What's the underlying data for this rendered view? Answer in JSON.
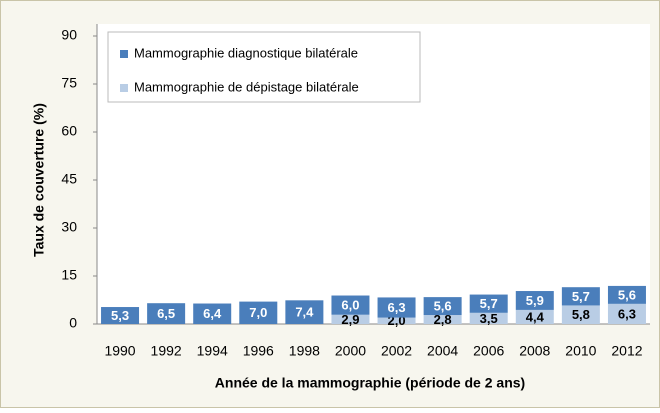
{
  "chart_data": {
    "type": "stacked-bar",
    "ylabel": "Taux de couverture (%)",
    "xlabel": "Année de la mammographie (période de 2 ans)",
    "categories": [
      "1990",
      "1992",
      "1994",
      "1996",
      "1998",
      "2000",
      "2002",
      "2004",
      "2006",
      "2008",
      "2010",
      "2012"
    ],
    "series": [
      {
        "name": "Mammographie de dépistage bilatérale",
        "color": "#b9cde5",
        "label_color": "#000000",
        "values": [
          null,
          null,
          null,
          null,
          null,
          2.9,
          2.0,
          2.8,
          3.5,
          4.4,
          5.8,
          6.3
        ],
        "value_labels": [
          null,
          null,
          null,
          null,
          null,
          "2,9",
          "2,0",
          "2,8",
          "3,5",
          "4,4",
          "5,8",
          "6,3"
        ]
      },
      {
        "name": "Mammographie diagnostique bilatérale",
        "color": "#4a7ebb",
        "label_color": "#ffffff",
        "values": [
          5.3,
          6.5,
          6.4,
          7.0,
          7.4,
          6.0,
          6.3,
          5.6,
          5.7,
          5.9,
          5.7,
          5.6
        ],
        "value_labels": [
          "5,3",
          "6,5",
          "6,4",
          "7,0",
          "7,4",
          "6,0",
          "6,3",
          "5,6",
          "5,7",
          "5,9",
          "5,7",
          "5,6"
        ]
      }
    ],
    "legend_order": [
      1,
      0
    ],
    "ylim": [
      0,
      90
    ],
    "yticks": [
      0,
      15,
      30,
      45,
      60,
      75,
      90
    ],
    "grid": false
  }
}
